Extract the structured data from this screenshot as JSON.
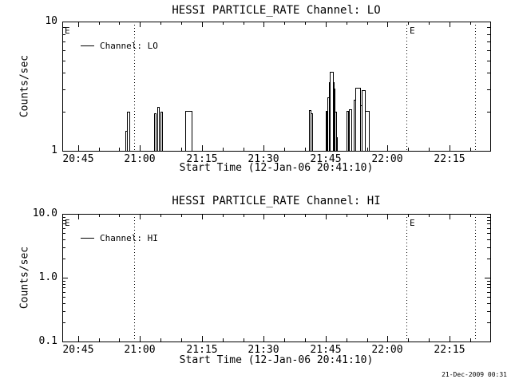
{
  "footer": {
    "timestamp": "21-Dec-2009 00:31"
  },
  "colors": {
    "foreground": "#000000",
    "background": "#ffffff"
  },
  "panels": [
    {
      "title": "HESSI PARTICLE_RATE Channel: LO",
      "ylabel": "Counts/sec",
      "xlabel": "Start Time (12-Jan-06 20:41:10)",
      "legend": "Channel: LO"
    },
    {
      "title": "HESSI PARTICLE_RATE Channel: HI",
      "ylabel": "Counts/sec",
      "xlabel": "Start Time (12-Jan-06 20:41:10)",
      "legend": "Channel: HI"
    }
  ],
  "chart_data": [
    {
      "type": "line",
      "title": "HESSI PARTICLE_RATE Channel: LO",
      "xlabel": "Start Time (12-Jan-06 20:41:10)",
      "ylabel": "Counts/sec",
      "yscale": "log",
      "ylim": [
        1,
        10
      ],
      "x_unit": "minutes after 12-Jan-06 20:41:10",
      "xlim": [
        0,
        103.7
      ],
      "xticks": [
        {
          "m": 3.833,
          "label": "20:45"
        },
        {
          "m": 18.833,
          "label": "21:00"
        },
        {
          "m": 33.833,
          "label": "21:15"
        },
        {
          "m": 48.833,
          "label": "21:30"
        },
        {
          "m": 63.833,
          "label": "21:45"
        },
        {
          "m": 78.833,
          "label": "22:00"
        },
        {
          "m": 93.833,
          "label": "22:15"
        }
      ],
      "yticks": [
        {
          "v": 1,
          "label": "1"
        },
        {
          "v": 10,
          "label": "10"
        }
      ],
      "baseline": 1.0,
      "series": [
        {
          "name": "Channel: LO",
          "steps": [
            [
              15.3,
              15.68,
              1.43
            ],
            [
              15.68,
              16.16,
              2.0
            ],
            [
              22.26,
              22.64,
              1.96
            ],
            [
              23.03,
              23.42,
              2.18
            ],
            [
              23.75,
              24.25,
              2.0
            ],
            [
              29.8,
              31.35,
              2.04
            ],
            [
              59.7,
              60.1,
              2.05
            ],
            [
              60.2,
              60.55,
              1.96
            ],
            [
              63.8,
              64.1,
              2.04
            ],
            [
              64.3,
              64.6,
              2.6
            ],
            [
              64.6,
              64.9,
              3.4
            ],
            [
              64.9,
              65.5,
              4.1
            ],
            [
              65.5,
              65.7,
              3.4
            ],
            [
              65.7,
              66.0,
              3.05
            ],
            [
              66.0,
              66.3,
              2.0
            ],
            [
              66.3,
              66.55,
              1.27
            ],
            [
              68.9,
              69.3,
              2.04
            ],
            [
              69.55,
              70.0,
              2.08
            ],
            [
              70.6,
              71.0,
              2.5
            ],
            [
              71.0,
              72.2,
              3.08
            ],
            [
              72.2,
              72.6,
              2.24
            ],
            [
              72.6,
              73.3,
              2.95
            ],
            [
              73.3,
              74.25,
              2.04
            ]
          ]
        }
      ],
      "vlines": [
        {
          "m": 17.42,
          "style": "dotted"
        },
        {
          "m": 83.4,
          "style": "dotted"
        },
        {
          "m": 100.06,
          "style": "dotted"
        }
      ],
      "annotations": [
        {
          "m": 0.4,
          "text": "E"
        },
        {
          "m": 83.9,
          "text": "E"
        }
      ],
      "legend": "Channel: LO",
      "legend_position": "top-left",
      "grid": false
    },
    {
      "type": "line",
      "title": "HESSI PARTICLE_RATE Channel: HI",
      "xlabel": "Start Time (12-Jan-06 20:41:10)",
      "ylabel": "Counts/sec",
      "yscale": "log",
      "ylim": [
        0.1,
        10
      ],
      "x_unit": "minutes after 12-Jan-06 20:41:10",
      "xlim": [
        0,
        103.7
      ],
      "xticks": [
        {
          "m": 3.833,
          "label": "20:45"
        },
        {
          "m": 18.833,
          "label": "21:00"
        },
        {
          "m": 33.833,
          "label": "21:15"
        },
        {
          "m": 48.833,
          "label": "21:30"
        },
        {
          "m": 63.833,
          "label": "21:45"
        },
        {
          "m": 78.833,
          "label": "22:00"
        },
        {
          "m": 93.833,
          "label": "22:15"
        }
      ],
      "yticks": [
        {
          "v": 0.1,
          "label": "0.1"
        },
        {
          "v": 1,
          "label": "1.0"
        },
        {
          "v": 10,
          "label": "10.0"
        }
      ],
      "baseline": 0.1,
      "series": [
        {
          "name": "Channel: HI",
          "steps": []
        }
      ],
      "vlines": [
        {
          "m": 17.42,
          "style": "dotted"
        },
        {
          "m": 83.4,
          "style": "dotted"
        },
        {
          "m": 100.06,
          "style": "dotted"
        }
      ],
      "annotations": [
        {
          "m": 0.4,
          "text": "E"
        },
        {
          "m": 83.9,
          "text": "E"
        }
      ],
      "legend": "Channel: HI",
      "legend_position": "top-left",
      "grid": false
    }
  ]
}
